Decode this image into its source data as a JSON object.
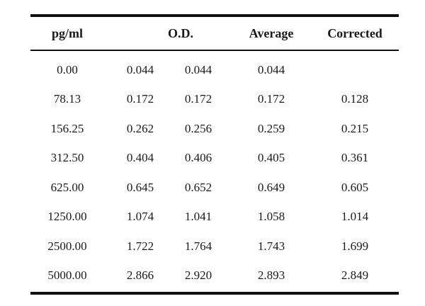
{
  "table": {
    "headers": {
      "pg_ml": "pg/ml",
      "od": "O.D.",
      "average": "Average",
      "corrected": "Corrected"
    },
    "rows": [
      {
        "pg_ml": "0.00",
        "od1": "0.044",
        "od2": "0.044",
        "average": "0.044",
        "corrected": ""
      },
      {
        "pg_ml": "78.13",
        "od1": "0.172",
        "od2": "0.172",
        "average": "0.172",
        "corrected": "0.128"
      },
      {
        "pg_ml": "156.25",
        "od1": "0.262",
        "od2": "0.256",
        "average": "0.259",
        "corrected": "0.215"
      },
      {
        "pg_ml": "312.50",
        "od1": "0.404",
        "od2": "0.406",
        "average": "0.405",
        "corrected": "0.361"
      },
      {
        "pg_ml": "625.00",
        "od1": "0.645",
        "od2": "0.652",
        "average": "0.649",
        "corrected": "0.605"
      },
      {
        "pg_ml": "1250.00",
        "od1": "1.074",
        "od2": "1.041",
        "average": "1.058",
        "corrected": "1.014"
      },
      {
        "pg_ml": "2500.00",
        "od1": "1.722",
        "od2": "1.764",
        "average": "1.743",
        "corrected": "1.699"
      },
      {
        "pg_ml": "5000.00",
        "od1": "2.866",
        "od2": "2.920",
        "average": "2.893",
        "corrected": "2.849"
      }
    ]
  }
}
